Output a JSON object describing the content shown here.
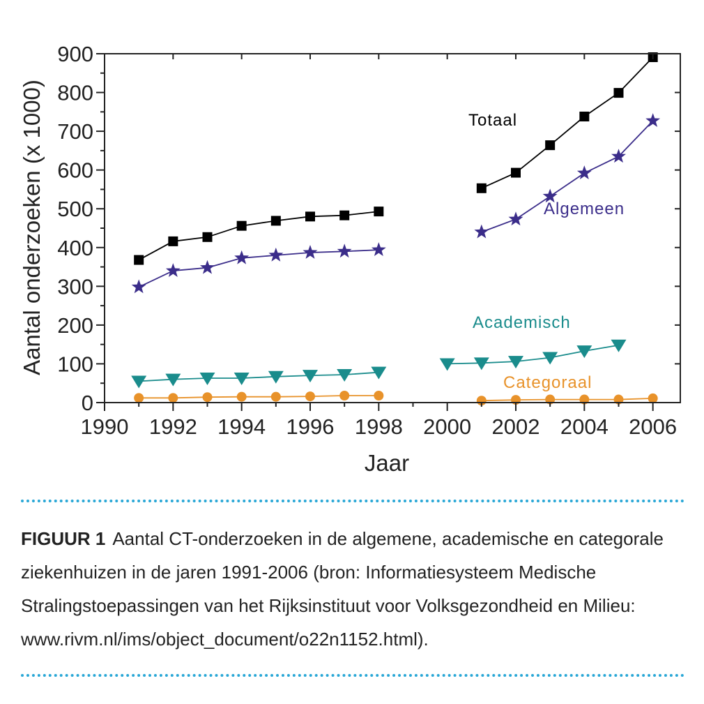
{
  "chart_data": {
    "type": "line",
    "xlabel": "Jaar",
    "ylabel": "Aantal onderzoeken (x 1000)",
    "xlim": [
      1990,
      2006.8
    ],
    "ylim": [
      0,
      900
    ],
    "x_ticks": [
      "1990",
      "1992",
      "1994",
      "1996",
      "1998",
      "2000",
      "2002",
      "2004",
      "2006"
    ],
    "y_ticks": [
      "0",
      "100",
      "200",
      "300",
      "400",
      "500",
      "600",
      "700",
      "800",
      "900"
    ],
    "grid": false,
    "series": [
      {
        "name": "Totaal",
        "color": "#000000",
        "marker": "square",
        "segments": [
          [
            [
              1991,
              368
            ],
            [
              1992,
              416
            ],
            [
              1993,
              427
            ],
            [
              1994,
              456
            ],
            [
              1995,
              469
            ],
            [
              1996,
              480
            ],
            [
              1997,
              483
            ],
            [
              1998,
              493
            ]
          ],
          [
            [
              2001,
              553
            ],
            [
              2002,
              593
            ],
            [
              2003,
              664
            ],
            [
              2004,
              738
            ],
            [
              2005,
              799
            ],
            [
              2006,
              891
            ]
          ]
        ]
      },
      {
        "name": "Algemeen",
        "color": "#3b2d8a",
        "marker": "star",
        "segments": [
          [
            [
              1991,
              298
            ],
            [
              1992,
              340
            ],
            [
              1993,
              348
            ],
            [
              1994,
              373
            ],
            [
              1995,
              380
            ],
            [
              1996,
              387
            ],
            [
              1997,
              390
            ],
            [
              1998,
              394
            ]
          ],
          [
            [
              2001,
              440
            ],
            [
              2002,
              473
            ],
            [
              2003,
              532
            ],
            [
              2004,
              592
            ],
            [
              2005,
              635
            ],
            [
              2006,
              727
            ]
          ]
        ]
      },
      {
        "name": "Academisch",
        "color": "#1a8c8c",
        "marker": "triangle-down",
        "segments": [
          [
            [
              1991,
              55
            ],
            [
              1992,
              60
            ],
            [
              1993,
              63
            ],
            [
              1994,
              63
            ],
            [
              1995,
              67
            ],
            [
              1996,
              70
            ],
            [
              1997,
              72
            ],
            [
              1998,
              78
            ]
          ],
          [
            [
              2000,
              100
            ],
            [
              2001,
              102
            ],
            [
              2002,
              106
            ],
            [
              2003,
              116
            ],
            [
              2004,
              133
            ],
            [
              2005,
              148
            ]
          ]
        ]
      },
      {
        "name": "Categoraal",
        "color": "#e8922a",
        "marker": "circle",
        "segments": [
          [
            [
              1991,
              12
            ],
            [
              1992,
              12
            ],
            [
              1993,
              14
            ],
            [
              1994,
              15
            ],
            [
              1995,
              15
            ],
            [
              1996,
              16
            ],
            [
              1997,
              18
            ],
            [
              1998,
              18
            ]
          ],
          [
            [
              2001,
              5
            ],
            [
              2002,
              7
            ],
            [
              2003,
              8
            ],
            [
              2004,
              8
            ],
            [
              2005,
              8
            ],
            [
              2006,
              11
            ]
          ]
        ]
      }
    ]
  },
  "caption": {
    "label": "FIGUUR 1",
    "text": "Aantal CT-onderzoeken in de algemene, academische en categorale ziekenhuizen in de jaren 1991-2006 (bron: Informatiesysteem Medische Stralingstoepassingen van het Rijksinstituut voor Volksgezondheid en Milieu: www.rivm.nl/ims/object_document/o22n1152.html)."
  },
  "colors": {
    "divider": "#29a7d6"
  }
}
